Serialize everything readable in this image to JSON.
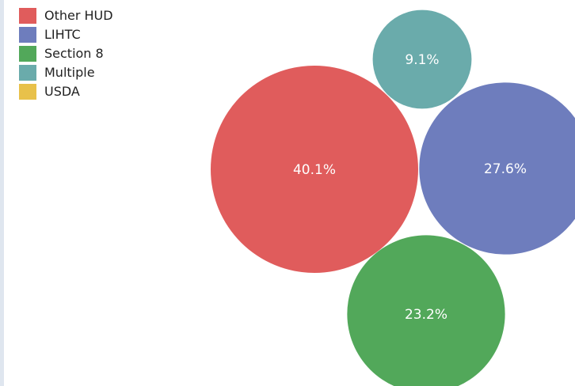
{
  "legend": [
    {
      "label": "Other HUD",
      "color": "#e05c5c"
    },
    {
      "label": "LIHTC",
      "color": "#6e7dbd"
    },
    {
      "label": "Section 8",
      "color": "#52a85a"
    },
    {
      "label": "Multiple",
      "color": "#6aabab"
    },
    {
      "label": "USDA",
      "color": "#e8c14a"
    }
  ],
  "chart_data": {
    "type": "bubble",
    "title": "",
    "series": [
      {
        "name": "Other HUD",
        "value": 40.1,
        "label": "40.1%",
        "color": "#e05c5c"
      },
      {
        "name": "LIHTC",
        "value": 27.6,
        "label": "27.6%",
        "color": "#6e7dbd"
      },
      {
        "name": "Section 8",
        "value": 23.2,
        "label": "23.2%",
        "color": "#52a85a"
      },
      {
        "name": "Multiple",
        "value": 9.1,
        "label": "9.1%",
        "color": "#6aabab"
      }
    ],
    "units": "%"
  }
}
